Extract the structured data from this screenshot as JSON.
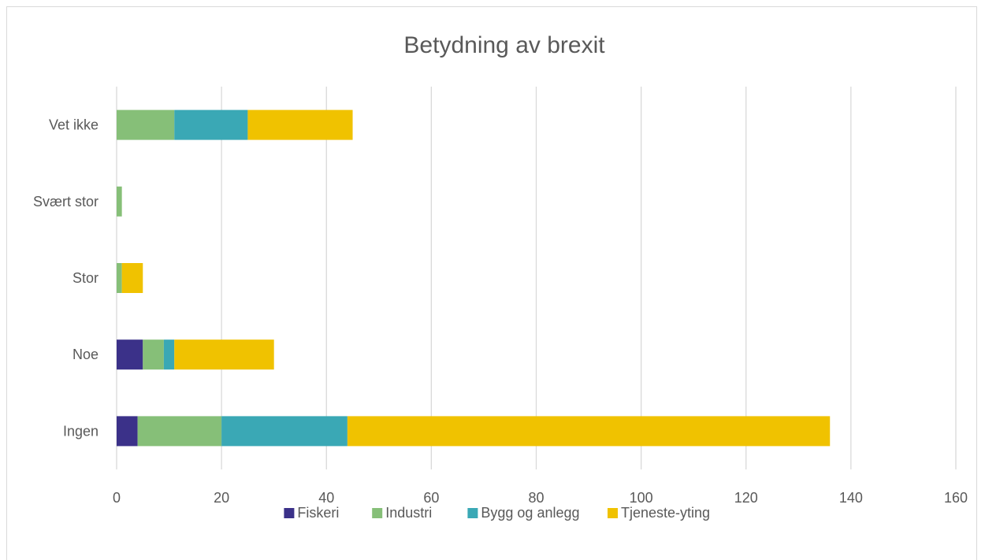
{
  "chart_data": {
    "type": "bar",
    "orientation": "horizontal",
    "stacked": true,
    "title": "Betydning av brexit",
    "categories": [
      "Vet ikke",
      "Svært stor",
      "Stor",
      "Noe",
      "Ingen"
    ],
    "series": [
      {
        "name": "Fiskeri",
        "color": "#3b3189",
        "values": [
          0,
          0,
          0,
          5,
          4
        ]
      },
      {
        "name": "Industri",
        "color": "#86bf78",
        "values": [
          11,
          1,
          1,
          4,
          16
        ]
      },
      {
        "name": "Bygg og anlegg",
        "color": "#3aa8b5",
        "values": [
          14,
          0,
          0,
          2,
          24
        ]
      },
      {
        "name": "Tjeneste-yting",
        "color": "#f0c200",
        "values": [
          20,
          0,
          4,
          19,
          92
        ]
      }
    ],
    "xlim": [
      0,
      160
    ],
    "x_ticks": [
      0,
      20,
      40,
      60,
      80,
      100,
      120,
      140,
      160
    ],
    "xlabel": "",
    "ylabel": "",
    "grid": "vertical",
    "legend": "bottom"
  }
}
